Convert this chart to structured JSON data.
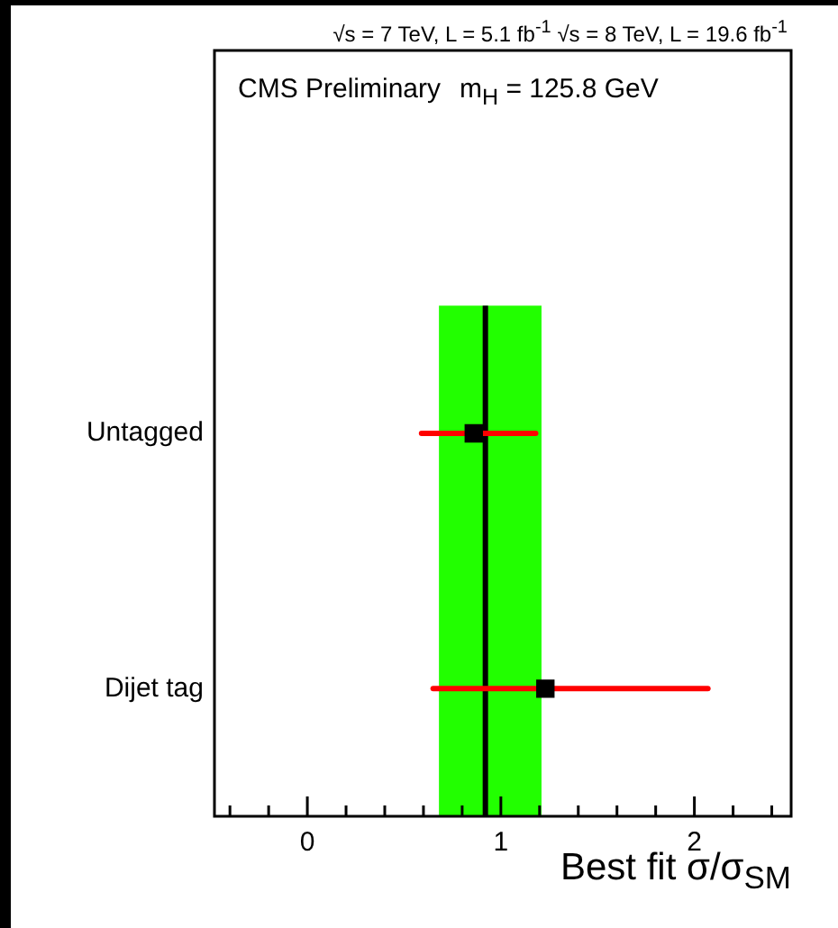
{
  "chart_data": {
    "type": "scatter",
    "subtitle": "√s = 7 TeV, L = 5.1 fb$^{-1}$  √s = 8 TeV, L = 19.6 fb$^{-1}$",
    "xlabel": "Best fit σ/σ$_{SM}$",
    "annotations": [
      "CMS Preliminary",
      "m$_{H}$ = 125.8 GeV"
    ],
    "categories": [
      "Untagged",
      "Dijet tag"
    ],
    "orientation": "horizontal",
    "series": [
      {
        "color": "#000000",
        "values": [
          0.86,
          1.23
        ],
        "errors": [
          [
            0.59,
            1.18
          ],
          [
            0.65,
            2.07
          ]
        ]
      }
    ],
    "marker": "square",
    "xlim": [
      -0.48,
      2.5
    ],
    "xticks": [
      {
        "value": -0.4,
        "label": null
      },
      {
        "value": -0.2,
        "label": null
      },
      0,
      {
        "value": 0.2,
        "label": null
      },
      {
        "value": 0.4,
        "label": null
      },
      {
        "value": 0.6,
        "label": null
      },
      {
        "value": 0.8,
        "label": null
      },
      1,
      {
        "value": 1.2,
        "label": null
      },
      {
        "value": 1.4,
        "label": null
      },
      {
        "value": 1.6,
        "label": null
      },
      {
        "value": 1.8,
        "label": null
      },
      2,
      {
        "value": 2.2,
        "label": null
      },
      {
        "value": 2.4,
        "label": null
      }
    ],
    "ref_lines": [
      {
        "axis": "x",
        "value": 0.92,
        "color": "#000000"
      }
    ],
    "bands": [
      {
        "axis": "x",
        "from": 0.68,
        "to": 1.21,
        "color": "#22ff00"
      }
    ]
  }
}
